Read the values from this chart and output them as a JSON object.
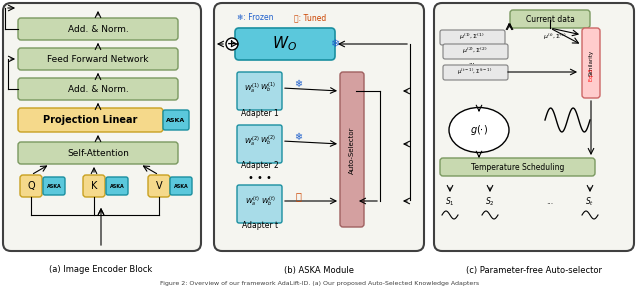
{
  "fig_width": 6.4,
  "fig_height": 2.89,
  "dpi": 100,
  "bg_color": "#ffffff",
  "caption": "Figure 2: Overview of our framework AdaLift-ID. (a) Our proposed Auto-Selected Knowledge Adapters",
  "panel_a_label": "(a) Image Encoder Block",
  "panel_b_label": "(b) ASKA Module",
  "panel_c_label": "(c) Parameter-free Auto-selector",
  "legend_frozen": "❄: Frozen",
  "legend_tuned": "🔥: Tuned",
  "color_green_box": "#c8d9b0",
  "color_green_border": "#7a9960",
  "color_yellow_box": "#f5d98b",
  "color_yellow_border": "#c8a020",
  "color_blue_box": "#5bc8dc",
  "color_blue_border": "#1a8fa0",
  "color_blue_light": "#a8dce8",
  "color_pink_box": "#d4a0a0",
  "color_pink_border": "#a06060",
  "color_outer_border": "#404040"
}
